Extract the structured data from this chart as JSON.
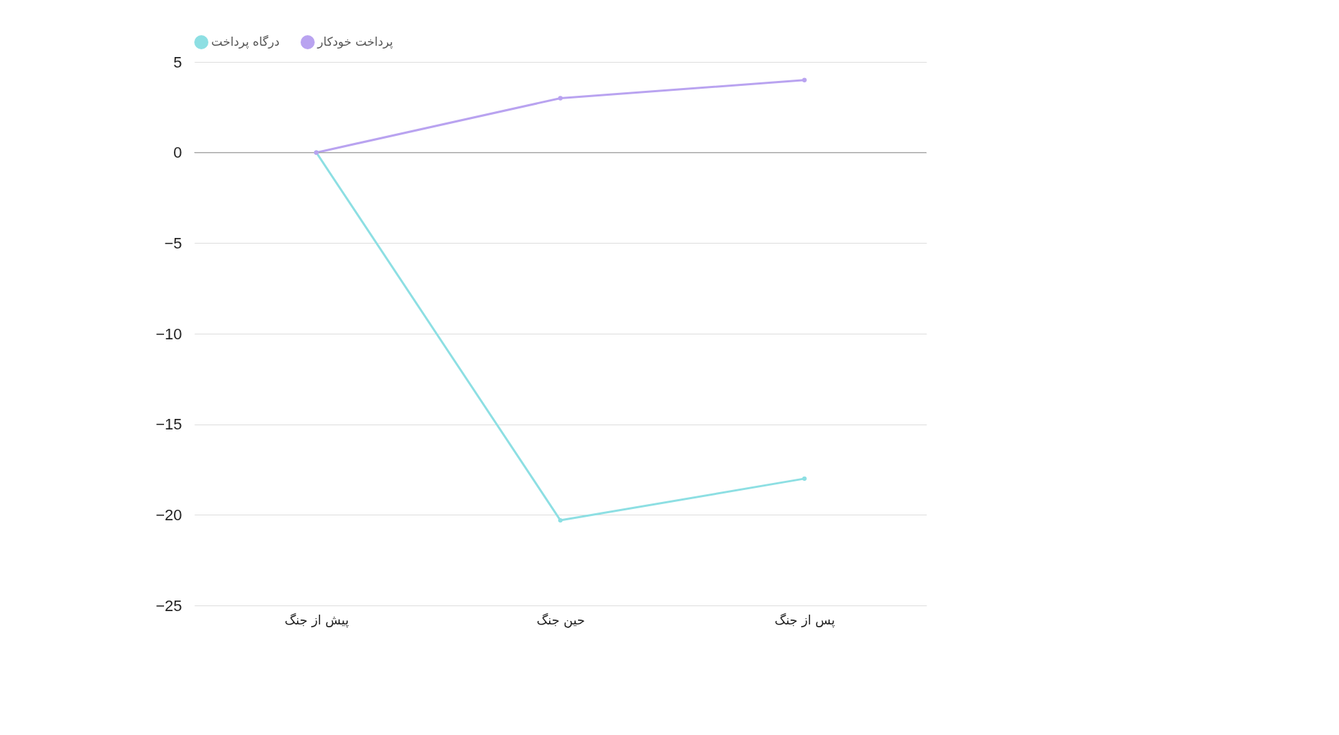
{
  "chart_data": {
    "type": "line",
    "categories": [
      "پیش از جنگ",
      "حین جنگ",
      "پس از جنگ"
    ],
    "series": [
      {
        "name": "درگاه پرداخت",
        "color": "#8ddfe3",
        "values": [
          0,
          -20.3,
          -18
        ]
      },
      {
        "name": "پرداخت خودکار",
        "color": "#b9a3f0",
        "values": [
          0,
          3,
          4
        ]
      }
    ],
    "ylim": [
      -25,
      5
    ],
    "yticks": [
      -25,
      -20,
      -15,
      -10,
      -5,
      0,
      5
    ],
    "grid": "y",
    "legend": "top",
    "marker": "circle",
    "line_style": "solid",
    "ref_lines": [
      {
        "axis": "y",
        "value": 0,
        "color": "#999999"
      }
    ]
  }
}
